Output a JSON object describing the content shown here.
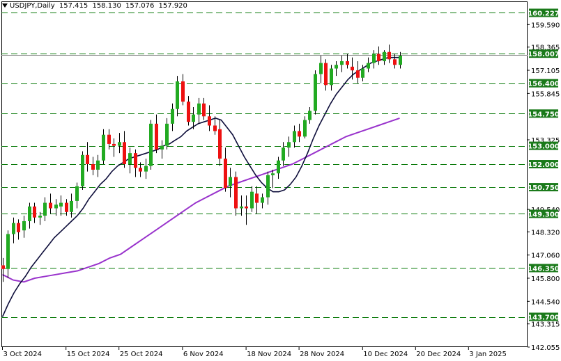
{
  "header": {
    "symbol_timeframe": "USDJPY,Daily",
    "open": "157.415",
    "high": "158.130",
    "low": "157.076",
    "close": "157.920"
  },
  "colors": {
    "bull": "#22aa22",
    "bear": "#ee1111",
    "level_line": "#0a7a0a",
    "level_label_bg": "#1a7a1a",
    "ma_fast": "#0d0d3a",
    "ma_slow": "#9933cc",
    "axis": "#000000"
  },
  "chart_data": {
    "type": "candlestick",
    "title": "USDJPY,Daily",
    "ylim": [
      142.055,
      160.85
    ],
    "y_ticks": [
      "159.590",
      "158.365",
      "157.105",
      "155.845",
      "153.325",
      "149.540",
      "148.320",
      "147.060",
      "145.800",
      "144.540",
      "143.315",
      "142.055"
    ],
    "x_ticks": [
      "3 Oct 2024",
      "15 Oct 2024",
      "25 Oct 2024",
      "6 Nov 2024",
      "18 Nov 2024",
      "28 Nov 2024",
      "10 Dec 2024",
      "20 Dec 2024",
      "3 Jan 2025"
    ],
    "x_tick_index": [
      0,
      12,
      22,
      34,
      46,
      56,
      68,
      78,
      88
    ],
    "levels": [
      "160.227",
      "158.007",
      "156.400",
      "154.750",
      "153.000",
      "152.000",
      "150.750",
      "149.300",
      "146.350",
      "143.700"
    ],
    "current_price": "157.920",
    "ohlc": [
      [
        146.5,
        146.9,
        145.6,
        146.3
      ],
      [
        146.3,
        148.4,
        145.8,
        148.2
      ],
      [
        148.2,
        149.1,
        147.7,
        148.8
      ],
      [
        148.8,
        149.0,
        147.9,
        148.3
      ],
      [
        148.4,
        149.2,
        148.0,
        148.9
      ],
      [
        148.9,
        149.9,
        148.5,
        149.7
      ],
      [
        149.7,
        149.9,
        148.8,
        149.1
      ],
      [
        149.1,
        149.4,
        148.7,
        149.2
      ],
      [
        149.2,
        150.2,
        148.9,
        149.9
      ],
      [
        149.9,
        150.4,
        149.3,
        149.6
      ],
      [
        149.6,
        150.1,
        149.2,
        149.8
      ],
      [
        149.7,
        150.3,
        149.2,
        149.9
      ],
      [
        149.9,
        150.1,
        149.2,
        149.4
      ],
      [
        149.4,
        150.4,
        149.1,
        150.0
      ],
      [
        150.0,
        151.0,
        149.6,
        150.8
      ],
      [
        150.8,
        152.7,
        150.6,
        152.5
      ],
      [
        152.5,
        153.2,
        151.6,
        152.0
      ],
      [
        152.0,
        152.4,
        151.4,
        151.7
      ],
      [
        151.7,
        152.5,
        151.3,
        152.2
      ],
      [
        152.2,
        153.9,
        152.0,
        153.6
      ],
      [
        153.6,
        153.9,
        152.8,
        153.1
      ],
      [
        153.1,
        153.4,
        152.4,
        153.0
      ],
      [
        153.0,
        153.7,
        152.6,
        153.2
      ],
      [
        153.2,
        153.8,
        151.8,
        152.0
      ],
      [
        152.0,
        152.9,
        151.5,
        152.6
      ],
      [
        152.6,
        152.8,
        151.3,
        151.8
      ],
      [
        151.8,
        152.1,
        151.3,
        151.6
      ],
      [
        151.6,
        152.3,
        151.2,
        151.9
      ],
      [
        151.9,
        154.4,
        151.7,
        154.2
      ],
      [
        154.2,
        154.7,
        152.6,
        152.8
      ],
      [
        152.8,
        153.3,
        152.3,
        153.0
      ],
      [
        153.0,
        154.5,
        152.8,
        154.2
      ],
      [
        154.2,
        155.3,
        153.8,
        155.0
      ],
      [
        155.0,
        156.8,
        154.6,
        156.5
      ],
      [
        156.5,
        156.9,
        155.2,
        155.4
      ],
      [
        155.4,
        155.7,
        154.1,
        154.3
      ],
      [
        154.3,
        155.1,
        153.9,
        154.7
      ],
      [
        154.7,
        155.6,
        154.2,
        155.3
      ],
      [
        155.3,
        155.6,
        154.4,
        154.6
      ],
      [
        154.6,
        155.2,
        153.8,
        154.1
      ],
      [
        154.1,
        154.6,
        153.6,
        153.8
      ],
      [
        153.9,
        154.4,
        151.9,
        152.3
      ],
      [
        152.3,
        152.9,
        150.5,
        150.7
      ],
      [
        150.8,
        151.8,
        150.2,
        151.3
      ],
      [
        151.3,
        151.6,
        149.2,
        149.6
      ],
      [
        149.6,
        150.3,
        149.2,
        149.7
      ],
      [
        149.7,
        150.3,
        148.7,
        149.6
      ],
      [
        149.6,
        150.8,
        149.4,
        150.5
      ],
      [
        150.4,
        150.8,
        149.3,
        149.9
      ],
      [
        149.9,
        150.4,
        149.6,
        150.2
      ],
      [
        150.2,
        151.6,
        149.8,
        151.4
      ],
      [
        151.4,
        151.7,
        150.7,
        151.5
      ],
      [
        151.5,
        152.4,
        151.2,
        152.2
      ],
      [
        152.2,
        153.2,
        151.9,
        152.9
      ],
      [
        152.9,
        153.5,
        152.4,
        153.2
      ],
      [
        153.2,
        154.1,
        152.9,
        153.8
      ],
      [
        153.8,
        154.2,
        153.2,
        153.5
      ],
      [
        153.5,
        154.6,
        153.4,
        154.4
      ],
      [
        154.4,
        155.1,
        154.2,
        154.9
      ],
      [
        154.9,
        157.1,
        154.7,
        156.9
      ],
      [
        156.9,
        157.9,
        156.4,
        157.5
      ],
      [
        157.5,
        157.7,
        156.0,
        156.3
      ],
      [
        156.3,
        157.4,
        156.0,
        157.2
      ],
      [
        157.2,
        157.6,
        156.8,
        157.4
      ],
      [
        157.4,
        157.9,
        157.0,
        157.6
      ],
      [
        157.6,
        158.0,
        157.2,
        157.4
      ],
      [
        157.3,
        157.8,
        156.6,
        157.1
      ],
      [
        157.1,
        157.6,
        156.4,
        156.7
      ],
      [
        156.7,
        157.4,
        156.5,
        157.2
      ],
      [
        157.2,
        157.8,
        157.0,
        157.5
      ],
      [
        157.5,
        158.2,
        157.2,
        158.0
      ],
      [
        158.0,
        158.4,
        157.4,
        157.6
      ],
      [
        157.6,
        158.2,
        157.4,
        158.1
      ],
      [
        158.1,
        158.5,
        157.5,
        157.7
      ],
      [
        157.7,
        158.0,
        157.2,
        157.4
      ],
      [
        157.4,
        158.1,
        157.2,
        157.9
      ]
    ],
    "ma_fast": [
      143.7,
      144.4,
      145.0,
      145.5,
      145.9,
      146.4,
      146.8,
      147.2,
      147.6,
      148.0,
      148.3,
      148.6,
      148.9,
      149.2,
      149.6,
      150.1,
      150.5,
      150.9,
      151.2,
      151.6,
      151.9,
      152.1,
      152.3,
      152.4,
      152.5,
      152.6,
      152.7,
      152.8,
      153.0,
      153.1,
      153.3,
      153.5,
      153.8,
      154.0,
      154.2,
      154.3,
      154.4,
      154.5,
      154.4,
      154.0,
      153.6,
      153.0,
      152.4,
      151.9,
      151.4,
      151.0,
      150.7,
      150.5,
      150.5,
      150.6,
      150.9,
      151.3,
      151.9,
      152.6,
      153.4,
      154.1,
      154.7,
      155.3,
      155.8,
      156.2,
      156.6,
      156.9,
      157.1,
      157.3,
      157.5,
      157.6,
      157.7,
      157.8,
      157.8,
      157.8
    ],
    "ma_slow": [
      146.0,
      145.7,
      145.6,
      145.8,
      145.9,
      146.0,
      146.1,
      146.2,
      146.4,
      146.6,
      146.9,
      147.1,
      147.5,
      147.9,
      148.3,
      148.7,
      149.1,
      149.5,
      149.9,
      150.2,
      150.5,
      150.8,
      151.0,
      151.2,
      151.4,
      151.6,
      151.8,
      152.0,
      152.3,
      152.6,
      152.9,
      153.2,
      153.5,
      153.7,
      153.9,
      154.1,
      154.3,
      154.5
    ],
    "series": [
      {
        "values": "ma_fast"
      },
      {
        "values": "ma_slow"
      }
    ]
  }
}
